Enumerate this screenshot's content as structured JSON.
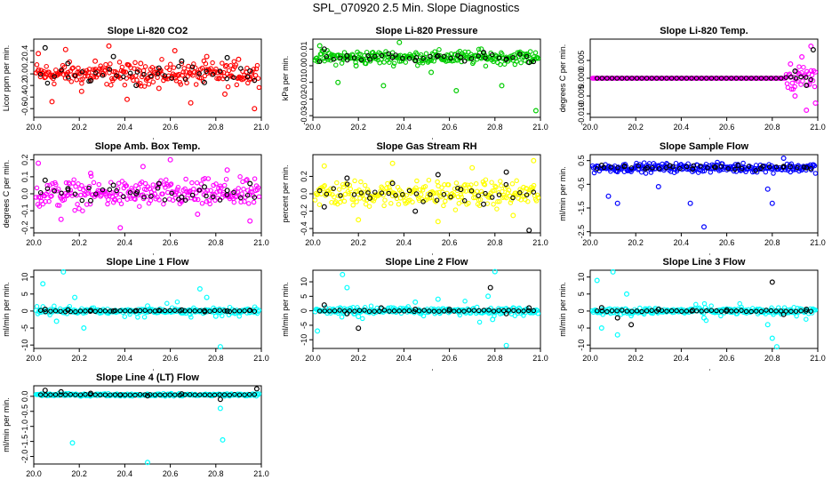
{
  "figure": {
    "title": "SPL_070920  2.5 Min. Slope Diagnostics",
    "x_range": [
      20.0,
      21.0
    ],
    "x_ticks": [
      "20.0",
      "20.2",
      "20.4",
      "20.6",
      "20.8",
      "21.0"
    ]
  },
  "chart_data": [
    {
      "type": "scatter",
      "title": "Slope Li-820 CO2",
      "ylabel": "Licor ppm per min.",
      "ylim": [
        -0.75,
        0.6
      ],
      "yticks": [
        "-0.6",
        "-0.4",
        "-0.2",
        "0.0",
        "0.2",
        "0.4"
      ],
      "ytick_values": [
        -0.6,
        -0.4,
        -0.2,
        0.0,
        0.2,
        0.4
      ],
      "color": "#ff0000",
      "pattern": "noise",
      "amplitude": 0.28,
      "center": 0.0,
      "series": [
        {
          "name": "raw",
          "color": "#ff0000",
          "x": [
            20.02,
            20.08,
            20.14,
            20.21,
            20.27,
            20.33,
            20.41,
            20.47,
            20.55,
            20.62,
            20.69,
            20.76,
            20.84,
            20.9,
            20.97
          ],
          "y": [
            0.35,
            -0.48,
            0.42,
            -0.3,
            0.22,
            0.48,
            -0.44,
            0.18,
            -0.25,
            0.4,
            -0.5,
            0.3,
            -0.35,
            0.25,
            -0.6
          ]
        },
        {
          "name": "avg",
          "color": "#000000",
          "x": [
            20.05,
            20.15,
            20.25,
            20.35,
            20.45,
            20.55,
            20.65,
            20.75,
            20.85,
            20.95
          ],
          "y": [
            0.45,
            0.18,
            -0.12,
            0.3,
            -0.2,
            0.1,
            0.22,
            -0.15,
            0.28,
            0.05
          ]
        }
      ]
    },
    {
      "type": "scatter",
      "title": "Slope Li-820 Pressure",
      "ylabel": "kPa per min.",
      "ylim": [
        -0.031,
        0.016
      ],
      "yticks": [
        "-0.03",
        "-0.02",
        "-0.01",
        "0.00",
        "0.01"
      ],
      "ytick_values": [
        -0.03,
        -0.02,
        -0.01,
        0.0,
        0.01
      ],
      "color": "#00cc00",
      "pattern": "noise",
      "amplitude": 0.006,
      "center": 0.005,
      "series": [
        {
          "name": "raw",
          "color": "#00cc00",
          "x": [
            20.03,
            20.11,
            20.19,
            20.31,
            20.38,
            20.52,
            20.63,
            20.74,
            20.83,
            20.98
          ],
          "y": [
            0.012,
            -0.01,
            0.0,
            -0.012,
            0.014,
            -0.004,
            -0.015,
            0.01,
            -0.012,
            -0.027
          ]
        },
        {
          "name": "avg",
          "color": "#000000",
          "x": [
            20.05,
            20.15,
            20.25,
            20.35,
            20.45,
            20.55,
            20.65,
            20.75,
            20.85,
            20.95
          ],
          "y": [
            0.01,
            0.006,
            0.004,
            0.005,
            0.003,
            0.006,
            0.005,
            0.008,
            0.004,
            0.002
          ]
        }
      ]
    },
    {
      "type": "scatter",
      "title": "Slope Li-820 Temp.",
      "ylabel": "degrees C per min.",
      "ylim": [
        -0.011,
        0.011
      ],
      "yticks": [
        "-0.010",
        "-0.005",
        "0.000",
        "0.005"
      ],
      "ytick_values": [
        -0.01,
        -0.005,
        0.0,
        0.005
      ],
      "color": "#ff00ff",
      "pattern": "flat-then-spread",
      "amplitude": 0.005,
      "center": 0.0,
      "series": [
        {
          "name": "raw",
          "color": "#ff00ff",
          "x": [
            20.88,
            20.9,
            20.93,
            20.95,
            20.97,
            20.99
          ],
          "y": [
            0.004,
            -0.005,
            0.006,
            -0.009,
            0.009,
            -0.007
          ]
        },
        {
          "name": "avg",
          "color": "#000000",
          "x": [
            20.9,
            20.95,
            20.98
          ],
          "y": [
            0.002,
            -0.002,
            0.008
          ]
        }
      ]
    },
    {
      "type": "scatter",
      "title": "Slope Amb. Box Temp.",
      "ylabel": "degrees C per min.",
      "ylim": [
        -0.23,
        0.23
      ],
      "yticks": [
        "-0.2",
        "-0.1",
        "0.0",
        "0.1",
        "0.2"
      ],
      "ytick_values": [
        -0.2,
        -0.1,
        0.0,
        0.1,
        0.2
      ],
      "color": "#ff00ff",
      "pattern": "noise",
      "amplitude": 0.12,
      "center": 0.0,
      "series": [
        {
          "name": "raw",
          "color": "#ff00ff",
          "x": [
            20.02,
            20.12,
            20.25,
            20.38,
            20.48,
            20.6,
            20.72,
            20.85,
            20.95
          ],
          "y": [
            0.18,
            -0.15,
            0.12,
            -0.2,
            0.16,
            0.2,
            -0.12,
            0.14,
            -0.16
          ]
        },
        {
          "name": "avg",
          "color": "#000000",
          "x": [
            20.05,
            20.15,
            20.25,
            20.35,
            20.45,
            20.55,
            20.65,
            20.75,
            20.85,
            20.95
          ],
          "y": [
            0.08,
            0.03,
            -0.04,
            0.05,
            0.0,
            0.06,
            -0.02,
            0.04,
            0.02,
            0.06
          ]
        }
      ]
    },
    {
      "type": "scatter",
      "title": "Slope Gas Stream RH",
      "ylabel": "percent per min.",
      "ylim": [
        -0.45,
        0.45
      ],
      "yticks": [
        "-0.4",
        "-0.2",
        "0.0",
        "0.2"
      ],
      "ytick_values": [
        -0.4,
        -0.2,
        0.0,
        0.2
      ],
      "color": "#ffff00",
      "pattern": "noise",
      "amplitude": 0.22,
      "center": 0.0,
      "series": [
        {
          "name": "raw",
          "color": "#ffff00",
          "x": [
            20.05,
            20.2,
            20.35,
            20.55,
            20.7,
            20.88,
            20.97
          ],
          "y": [
            0.32,
            -0.3,
            0.35,
            -0.32,
            0.3,
            -0.25,
            0.38
          ]
        },
        {
          "name": "avg",
          "color": "#000000",
          "x": [
            20.05,
            20.15,
            20.25,
            20.35,
            20.45,
            20.55,
            20.65,
            20.75,
            20.85,
            20.95
          ],
          "y": [
            -0.15,
            0.18,
            -0.05,
            0.12,
            -0.2,
            0.22,
            0.05,
            -0.12,
            0.25,
            -0.42
          ]
        }
      ]
    },
    {
      "type": "scatter",
      "title": "Slope Sample Flow",
      "ylabel": "ml/min per min.",
      "ylim": [
        -2.55,
        0.75
      ],
      "yticks": [
        "-2.5",
        "-1.5",
        "-0.5",
        "0.5"
      ],
      "ytick_values": [
        -2.5,
        -1.5,
        -0.5,
        0.5
      ],
      "color": "#0000ff",
      "pattern": "noise",
      "amplitude": 0.28,
      "center": 0.2,
      "series": [
        {
          "name": "raw",
          "color": "#0000ff",
          "x": [
            20.08,
            20.12,
            20.3,
            20.44,
            20.5,
            20.78,
            20.8,
            20.85
          ],
          "y": [
            -1.0,
            -1.3,
            -0.6,
            -1.3,
            -2.3,
            -0.7,
            -1.3,
            0.6
          ]
        },
        {
          "name": "avg",
          "color": "#000000",
          "x": [
            20.05,
            20.15,
            20.25,
            20.35,
            20.45,
            20.55,
            20.65,
            20.75,
            20.85,
            20.95
          ],
          "y": [
            0.3,
            0.25,
            0.2,
            0.28,
            0.15,
            0.22,
            0.3,
            0.18,
            0.25,
            0.2
          ]
        }
      ]
    },
    {
      "type": "scatter",
      "title": "Slope Line 1 Flow",
      "ylabel": "ml/min per min.",
      "ylim": [
        -11,
        12
      ],
      "yticks": [
        "-10",
        "-5",
        "0",
        "5",
        "10"
      ],
      "ytick_values": [
        -10,
        -5,
        0,
        5,
        10
      ],
      "color": "#00ffff",
      "pattern": "spiky",
      "amplitude": 1.2,
      "center": 0.0,
      "series": [
        {
          "name": "raw",
          "color": "#00ffff",
          "x": [
            20.04,
            20.1,
            20.13,
            20.18,
            20.22,
            20.5,
            20.73,
            20.76,
            20.8,
            20.82
          ],
          "y": [
            8,
            -3,
            11.5,
            4,
            -5,
            1.5,
            6.5,
            4,
            -1.5,
            -10.5
          ]
        },
        {
          "name": "avg",
          "color": "#000000",
          "x": [
            20.05,
            20.15,
            20.25,
            20.35,
            20.45,
            20.55,
            20.65,
            20.75,
            20.85,
            20.95
          ],
          "y": [
            0.5,
            0.3,
            0.2,
            0.0,
            0.1,
            0.2,
            0.3,
            0.1,
            0.0,
            0.2
          ]
        }
      ]
    },
    {
      "type": "scatter",
      "title": "Slope Line 2 Flow",
      "ylabel": "ml/min per min.",
      "ylim": [
        -13,
        14
      ],
      "yticks": [
        "-10",
        "-5",
        "0",
        "5",
        "10"
      ],
      "ytick_values": [
        -10,
        -5,
        0,
        5,
        10
      ],
      "color": "#00ffff",
      "pattern": "spiky",
      "amplitude": 1.5,
      "center": 0.0,
      "series": [
        {
          "name": "raw",
          "color": "#00ffff",
          "x": [
            20.02,
            20.13,
            20.15,
            20.2,
            20.45,
            20.55,
            20.77,
            20.79,
            20.8,
            20.85
          ],
          "y": [
            -7,
            12.5,
            8,
            -2,
            3,
            4,
            5,
            -3,
            13.5,
            -12
          ]
        },
        {
          "name": "avg",
          "color": "#000000",
          "x": [
            20.05,
            20.15,
            20.2,
            20.3,
            20.45,
            20.6,
            20.78,
            20.85,
            20.95
          ],
          "y": [
            2,
            -1,
            -6,
            1,
            0.5,
            0.5,
            8,
            -1,
            1
          ]
        }
      ]
    },
    {
      "type": "scatter",
      "title": "Slope Line 3 Flow",
      "ylabel": "ml/min per min.",
      "ylim": [
        -11,
        12
      ],
      "yticks": [
        "-10",
        "-5",
        "0",
        "5",
        "10"
      ],
      "ytick_values": [
        -10,
        -5,
        0,
        5,
        10
      ],
      "color": "#00ffff",
      "pattern": "spiky",
      "amplitude": 1.3,
      "center": 0.0,
      "series": [
        {
          "name": "raw",
          "color": "#00ffff",
          "x": [
            20.03,
            20.05,
            20.1,
            20.12,
            20.16,
            20.5,
            20.78,
            20.8,
            20.82
          ],
          "y": [
            9,
            -5,
            11.5,
            -7,
            5,
            -2,
            -4,
            -8,
            -10.5
          ]
        },
        {
          "name": "avg",
          "color": "#000000",
          "x": [
            20.05,
            20.12,
            20.18,
            20.3,
            20.45,
            20.6,
            20.8,
            20.85,
            20.95
          ],
          "y": [
            1,
            -2,
            -4,
            0.5,
            0.2,
            0.3,
            8.5,
            -1,
            0.5
          ]
        }
      ]
    },
    {
      "type": "scatter",
      "title": "Slope Line 4 (LT) Flow",
      "ylabel": "ml/min per min.",
      "ylim": [
        -2.25,
        0.35
      ],
      "yticks": [
        "-2.0",
        "-1.5",
        "-1.0",
        "-0.5",
        "0.0"
      ],
      "ytick_values": [
        -2.0,
        -1.5,
        -1.0,
        -0.5,
        0.0
      ],
      "color": "#00ffff",
      "pattern": "flat",
      "amplitude": 0.06,
      "center": 0.05,
      "series": [
        {
          "name": "raw",
          "color": "#00ffff",
          "x": [
            20.17,
            20.5,
            20.82,
            20.83
          ],
          "y": [
            -1.55,
            -2.2,
            -0.4,
            -1.45
          ]
        },
        {
          "name": "avg",
          "color": "#000000",
          "x": [
            20.05,
            20.12,
            20.25,
            20.38,
            20.5,
            20.65,
            20.82,
            20.98
          ],
          "y": [
            0.2,
            0.15,
            0.1,
            0.05,
            0.02,
            0.08,
            -0.1,
            0.25
          ]
        }
      ]
    }
  ]
}
